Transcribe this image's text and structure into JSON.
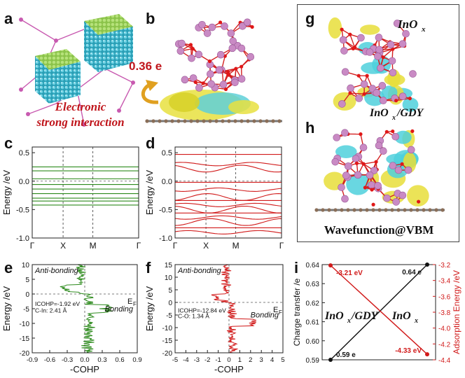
{
  "panels": {
    "a": "a",
    "b": "b",
    "c": "c",
    "d": "d",
    "e": "e",
    "f": "f",
    "g": "g",
    "h": "h",
    "i": "i"
  },
  "panel_a": {
    "caption_line1": "Electronic",
    "caption_line2": "strong interaction"
  },
  "panel_b": {
    "charge_label": "0.36 e"
  },
  "panel_g": {
    "label": "InO",
    "sub": "x"
  },
  "panel_h": {
    "label": "InO",
    "sub": "x",
    "label_suffix": "/GDY",
    "footer": "Wavefunction@VBM"
  },
  "colors": {
    "green": "#2e8b1e",
    "red": "#d11a1a",
    "black": "#111111",
    "caption_red": "#c0161c",
    "charge_red": "#c0161c"
  },
  "chart_data": [
    {
      "id": "c",
      "type": "line",
      "ylabel": "Energy /eV",
      "xticks": [
        "Γ",
        "X",
        "M",
        "Γ"
      ],
      "yticks": [
        "0.5",
        "0.0",
        "-0.5",
        "-1.0"
      ],
      "ylim": [
        -1.0,
        0.6
      ],
      "series_color": "green",
      "bands": [
        0.25,
        0.18,
        0.04,
        -0.06,
        -0.14,
        -0.22,
        -0.3,
        -0.35,
        -0.42
      ]
    },
    {
      "id": "d",
      "type": "line",
      "ylabel": "Energy /eV",
      "xticks": [
        "Γ",
        "X",
        "M",
        "Γ"
      ],
      "yticks": [
        "0.5",
        "0.0",
        "-0.5",
        "-1.0"
      ],
      "ylim": [
        -1.0,
        0.6
      ],
      "series_color": "red",
      "bands": [
        0.47,
        0.3,
        0.22,
        -0.02,
        -0.15,
        -0.28,
        -0.34,
        -0.42,
        -0.5,
        -0.56,
        -0.64,
        -0.72,
        -0.82,
        -0.9
      ]
    },
    {
      "id": "e",
      "type": "line",
      "ylabel": "Energy /eV",
      "xlabel": "-COHP",
      "xticks": [
        "-0.9",
        "-0.6",
        "-0.3",
        "0.0",
        "0.3",
        "0.6",
        "0.9"
      ],
      "yticks": [
        "10",
        "5",
        "0",
        "-5",
        "-10",
        "-15",
        "-20"
      ],
      "xlim": [
        -0.9,
        0.9
      ],
      "ylim": [
        -20,
        10
      ],
      "fermi_label": "E",
      "fermi_sub": "F",
      "anti_label": "Anti-bonding",
      "bond_label": "Bonding",
      "icohp_text": "ICOHP=-1.92 eV",
      "bond_text": "C-In: 2.41 Å",
      "series_color": "green"
    },
    {
      "id": "f",
      "type": "line",
      "ylabel": "Energy /eV",
      "xlabel": "-COHP",
      "xticks": [
        "-5",
        "-4",
        "-3",
        "-2",
        "-1",
        "0",
        "1",
        "2",
        "3",
        "4",
        "5"
      ],
      "yticks": [
        "15",
        "10",
        "5",
        "0",
        "-5",
        "-10",
        "-15",
        "-20"
      ],
      "xlim": [
        -5,
        5
      ],
      "ylim": [
        -20,
        15
      ],
      "fermi_label": "E",
      "fermi_sub": "F",
      "anti_label": "Anti-bonding",
      "bond_label": "Bonding",
      "icohp_text": "ICOHP=-12.84 eV",
      "bond_text": "C-O: 1.34 Å",
      "series_color": "red"
    },
    {
      "id": "i",
      "type": "line",
      "ylabel": "Charge transfer /e",
      "y2label": "Adsorption Energy /eV",
      "yticks": [
        "0.64",
        "0.63",
        "0.62",
        "0.61",
        "0.60",
        "0.59"
      ],
      "y2ticks": [
        "-3.2",
        "-3.4",
        "-3.6",
        "-3.8",
        "-4.0",
        "-4.2",
        "-4.4"
      ],
      "ylim": [
        0.59,
        0.64
      ],
      "y2lim": [
        -4.4,
        -3.2
      ],
      "categories": [
        "InOx/GDY",
        "InOx"
      ],
      "cat_label_1": "InO",
      "cat_label_1_sub": "x",
      "cat_label_1_suffix": "/GDY",
      "cat_label_2": "InO",
      "cat_label_2_sub": "x",
      "series": [
        {
          "axis": "left",
          "color": "black",
          "values": [
            0.59,
            0.64
          ],
          "labels": [
            "0.59 e",
            "0.64 e"
          ]
        },
        {
          "axis": "right",
          "color": "red",
          "values": [
            -3.21,
            -4.33
          ],
          "labels": [
            "-3.21 eV",
            "-4.33 eV"
          ]
        }
      ]
    }
  ]
}
